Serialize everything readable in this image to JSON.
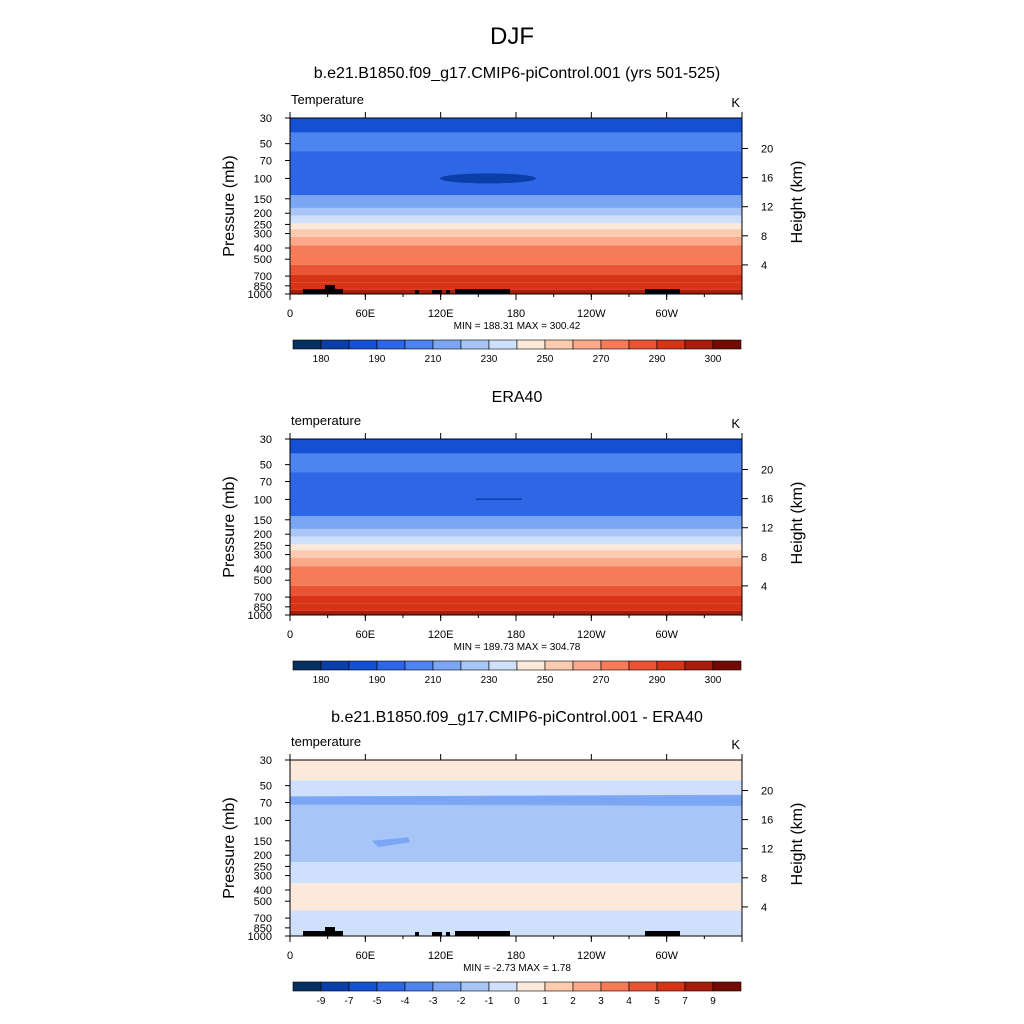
{
  "page": {
    "title": "DJF"
  },
  "chart_data": [
    {
      "type": "heatmap",
      "title": "b.e21.B1850.f09_g17.CMIP6-piControl.001 (yrs 501-525)",
      "left_label": "Temperature",
      "units": "K",
      "ylabel": "Pressure (mb)",
      "ylabel_right": "Height (km)",
      "stats": "MIN = 188.31  MAX = 300.42",
      "x_ticks": [
        "0",
        "60E",
        "120E",
        "180",
        "120W",
        "60W"
      ],
      "y_ticks": [
        "30",
        "50",
        "70",
        "100",
        "150",
        "200",
        "250",
        "300",
        "400",
        "500",
        "700",
        "850",
        "1000"
      ],
      "y_ticks_right": [
        "20",
        "16",
        "12",
        "8",
        "4"
      ],
      "colorbar_labels": [
        "180",
        "190",
        "210",
        "230",
        "250",
        "270",
        "290",
        "300"
      ],
      "min": 188.31,
      "max": 300.42,
      "layers": [
        {
          "p_top": 30,
          "p_bottom": 40,
          "level": 190
        },
        {
          "p_top": 40,
          "p_bottom": 58,
          "level": 200
        },
        {
          "p_top": 58,
          "p_bottom": 140,
          "level": 195
        },
        {
          "p_top": 140,
          "p_bottom": 180,
          "level": 205
        },
        {
          "p_top": 180,
          "p_bottom": 210,
          "level": 210
        },
        {
          "p_top": 210,
          "p_bottom": 245,
          "level": 220
        },
        {
          "p_top": 245,
          "p_bottom": 275,
          "level": 230
        },
        {
          "p_top": 275,
          "p_bottom": 320,
          "level": 240
        },
        {
          "p_top": 320,
          "p_bottom": 380,
          "level": 250
        },
        {
          "p_top": 380,
          "p_bottom": 460,
          "level": 260
        },
        {
          "p_top": 460,
          "p_bottom": 560,
          "level": 265
        },
        {
          "p_top": 560,
          "p_bottom": 680,
          "level": 270
        },
        {
          "p_top": 680,
          "p_bottom": 800,
          "level": 280
        },
        {
          "p_top": 800,
          "p_bottom": 920,
          "level": 285
        },
        {
          "p_top": 920,
          "p_bottom": 1000,
          "level": 290
        }
      ]
    },
    {
      "type": "heatmap",
      "title": "ERA40",
      "left_label": "temperature",
      "units": "K",
      "ylabel": "Pressure (mb)",
      "ylabel_right": "Height (km)",
      "stats": "MIN = 189.73  MAX = 304.78",
      "x_ticks": [
        "0",
        "60E",
        "120E",
        "180",
        "120W",
        "60W"
      ],
      "y_ticks": [
        "30",
        "50",
        "70",
        "100",
        "150",
        "200",
        "250",
        "300",
        "400",
        "500",
        "700",
        "850",
        "1000"
      ],
      "y_ticks_right": [
        "20",
        "16",
        "12",
        "8",
        "4"
      ],
      "colorbar_labels": [
        "180",
        "190",
        "210",
        "230",
        "250",
        "270",
        "290",
        "300"
      ],
      "min": 189.73,
      "max": 304.78,
      "layers": [
        {
          "p_top": 30,
          "p_bottom": 40,
          "level": 190
        },
        {
          "p_top": 40,
          "p_bottom": 58,
          "level": 200
        },
        {
          "p_top": 58,
          "p_bottom": 140,
          "level": 195
        },
        {
          "p_top": 140,
          "p_bottom": 180,
          "level": 205
        },
        {
          "p_top": 180,
          "p_bottom": 210,
          "level": 210
        },
        {
          "p_top": 210,
          "p_bottom": 245,
          "level": 220
        },
        {
          "p_top": 245,
          "p_bottom": 275,
          "level": 230
        },
        {
          "p_top": 275,
          "p_bottom": 320,
          "level": 240
        },
        {
          "p_top": 320,
          "p_bottom": 380,
          "level": 250
        },
        {
          "p_top": 380,
          "p_bottom": 460,
          "level": 260
        },
        {
          "p_top": 460,
          "p_bottom": 560,
          "level": 265
        },
        {
          "p_top": 560,
          "p_bottom": 680,
          "level": 270
        },
        {
          "p_top": 680,
          "p_bottom": 800,
          "level": 280
        },
        {
          "p_top": 800,
          "p_bottom": 920,
          "level": 285
        },
        {
          "p_top": 920,
          "p_bottom": 1000,
          "level": 290
        }
      ]
    },
    {
      "type": "heatmap",
      "title": "b.e21.B1850.f09_g17.CMIP6-piControl.001 - ERA40",
      "left_label": "temperature",
      "units": "K",
      "ylabel": "Pressure (mb)",
      "ylabel_right": "Height (km)",
      "stats": "MIN = -2.73  MAX =  1.78",
      "x_ticks": [
        "0",
        "60E",
        "120E",
        "180",
        "120W",
        "60W"
      ],
      "y_ticks": [
        "30",
        "50",
        "70",
        "100",
        "150",
        "200",
        "250",
        "300",
        "400",
        "500",
        "700",
        "850",
        "1000"
      ],
      "y_ticks_right": [
        "20",
        "16",
        "12",
        "8",
        "4"
      ],
      "colorbar_labels": [
        "-9",
        "-7",
        "-5",
        "-4",
        "-3",
        "-2",
        "-1",
        "0",
        "1",
        "2",
        "3",
        "4",
        "5",
        "7",
        "9"
      ],
      "min": -2.73,
      "max": 1.78,
      "layers": [
        {
          "p_top": 30,
          "p_bottom": 45,
          "level": 0.5
        },
        {
          "p_top": 45,
          "p_bottom": 62,
          "level": -0.5
        },
        {
          "p_top": 62,
          "p_bottom": 72,
          "level": -2.5
        },
        {
          "p_top": 72,
          "p_bottom": 230,
          "level": -1.5
        },
        {
          "p_top": 230,
          "p_bottom": 350,
          "level": -0.5
        },
        {
          "p_top": 350,
          "p_bottom": 600,
          "level": 0.5
        },
        {
          "p_top": 600,
          "p_bottom": 1000,
          "level": -0.5
        }
      ]
    }
  ]
}
